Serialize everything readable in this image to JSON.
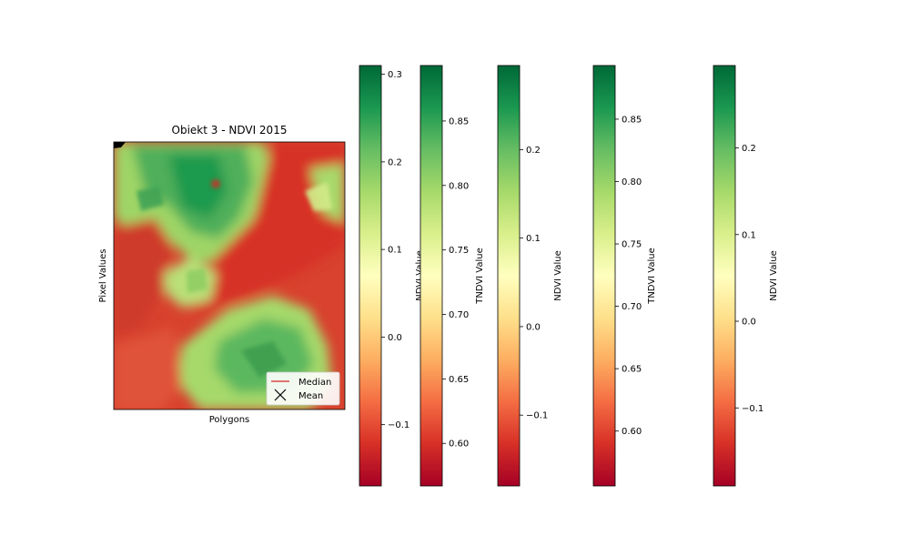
{
  "chart_data": [
    {
      "type": "heatmap",
      "title": "Obiekt 3 - NDVI 2015",
      "xlabel": "Polygons",
      "ylabel": "Pixel Values",
      "colormap": "RdYlGn",
      "grid": false,
      "legend": {
        "placement": "lower-right",
        "entries": [
          {
            "label": "Median",
            "marker": "line",
            "color": "#d62728"
          },
          {
            "label": "Mean",
            "marker": "x",
            "color": "#000000"
          }
        ]
      }
    },
    {
      "type": "colorbar",
      "label": "NDVI Value",
      "range": [
        -0.17,
        0.31
      ],
      "ticks": [
        -0.1,
        0.0,
        0.1,
        0.2,
        0.3
      ],
      "tick_labels": [
        "−0.1",
        "0.0",
        "0.1",
        "0.2",
        "0.3"
      ]
    },
    {
      "type": "colorbar",
      "label": "TNDVI Value",
      "range": [
        0.567,
        0.893
      ],
      "ticks": [
        0.6,
        0.65,
        0.7,
        0.75,
        0.8,
        0.85
      ],
      "tick_labels": [
        "0.60",
        "0.65",
        "0.70",
        "0.75",
        "0.80",
        "0.85"
      ]
    },
    {
      "type": "colorbar",
      "label": "NDVI Value",
      "range": [
        -0.18,
        0.295
      ],
      "ticks": [
        -0.1,
        0.0,
        0.1,
        0.2
      ],
      "tick_labels": [
        "−0.1",
        "0.0",
        "0.1",
        "0.2"
      ]
    },
    {
      "type": "colorbar",
      "label": "TNDVI Value",
      "range": [
        0.556,
        0.893
      ],
      "ticks": [
        0.6,
        0.65,
        0.7,
        0.75,
        0.8,
        0.85
      ],
      "tick_labels": [
        "0.60",
        "0.65",
        "0.70",
        "0.75",
        "0.80",
        "0.85"
      ]
    },
    {
      "type": "colorbar",
      "label": "NDVI Value",
      "range": [
        -0.19,
        0.295
      ],
      "ticks": [
        -0.1,
        0.0,
        0.1,
        0.2
      ],
      "tick_labels": [
        "−0.1",
        "0.0",
        "0.1",
        "0.2"
      ]
    }
  ]
}
